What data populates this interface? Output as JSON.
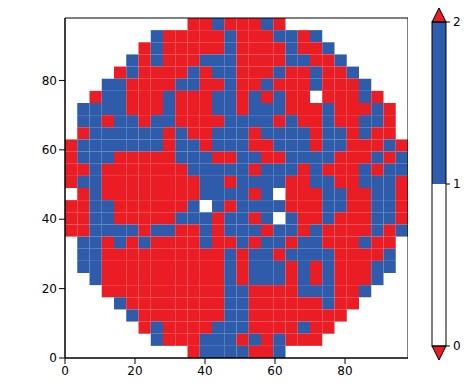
{
  "chart_data": {
    "type": "heatmap",
    "xlim": [
      0,
      98
    ],
    "ylim": [
      0,
      98
    ],
    "xticks": [
      0,
      20,
      40,
      60,
      80
    ],
    "yticks": [
      0,
      20,
      40,
      60,
      80
    ],
    "cells": [
      [
        null,
        null,
        null,
        null,
        null,
        null,
        null,
        null,
        null,
        null,
        2,
        2,
        1,
        2,
        2,
        2,
        1,
        2,
        null,
        null,
        null,
        null,
        null,
        null,
        null,
        null,
        null,
        null
      ],
      [
        null,
        null,
        null,
        null,
        null,
        null,
        null,
        1,
        2,
        2,
        2,
        2,
        2,
        1,
        2,
        2,
        2,
        1,
        1,
        2,
        1,
        null,
        null,
        null,
        null,
        null,
        null,
        null
      ],
      [
        null,
        null,
        null,
        null,
        null,
        null,
        2,
        1,
        2,
        2,
        2,
        2,
        2,
        1,
        2,
        2,
        2,
        2,
        1,
        2,
        2,
        1,
        null,
        null,
        null,
        null,
        null,
        null
      ],
      [
        null,
        null,
        null,
        null,
        null,
        1,
        2,
        1,
        2,
        2,
        2,
        1,
        1,
        1,
        2,
        2,
        2,
        2,
        1,
        1,
        2,
        2,
        1,
        null,
        null,
        null,
        null,
        null
      ],
      [
        null,
        null,
        null,
        null,
        2,
        1,
        2,
        2,
        2,
        2,
        1,
        2,
        1,
        1,
        2,
        2,
        2,
        1,
        2,
        2,
        1,
        2,
        2,
        1,
        null,
        null,
        null,
        null
      ],
      [
        null,
        null,
        null,
        1,
        1,
        2,
        2,
        2,
        2,
        1,
        1,
        2,
        2,
        1,
        2,
        2,
        1,
        2,
        2,
        2,
        1,
        2,
        2,
        2,
        1,
        null,
        null,
        null
      ],
      [
        null,
        null,
        2,
        1,
        1,
        2,
        2,
        2,
        1,
        2,
        2,
        2,
        1,
        1,
        2,
        1,
        2,
        1,
        2,
        2,
        0,
        2,
        2,
        2,
        1,
        2,
        null,
        null
      ],
      [
        null,
        1,
        1,
        1,
        1,
        2,
        2,
        2,
        1,
        2,
        2,
        2,
        1,
        1,
        2,
        1,
        1,
        1,
        2,
        2,
        2,
        1,
        2,
        2,
        2,
        1,
        2,
        null
      ],
      [
        null,
        1,
        1,
        2,
        1,
        1,
        2,
        1,
        1,
        2,
        2,
        2,
        2,
        1,
        1,
        1,
        1,
        2,
        1,
        2,
        2,
        1,
        2,
        2,
        1,
        1,
        2,
        null
      ],
      [
        null,
        2,
        1,
        1,
        1,
        1,
        1,
        1,
        2,
        1,
        2,
        2,
        1,
        1,
        1,
        2,
        1,
        1,
        1,
        1,
        2,
        1,
        1,
        2,
        1,
        2,
        2,
        null
      ],
      [
        2,
        1,
        1,
        1,
        1,
        1,
        1,
        1,
        2,
        1,
        1,
        2,
        1,
        1,
        1,
        2,
        2,
        1,
        1,
        1,
        2,
        1,
        1,
        2,
        2,
        2,
        1,
        2
      ],
      [
        2,
        1,
        1,
        1,
        2,
        2,
        2,
        2,
        2,
        1,
        1,
        1,
        2,
        2,
        1,
        1,
        2,
        2,
        1,
        1,
        1,
        1,
        2,
        2,
        2,
        1,
        2,
        1
      ],
      [
        2,
        2,
        1,
        2,
        2,
        2,
        2,
        2,
        2,
        2,
        1,
        1,
        1,
        1,
        1,
        2,
        1,
        1,
        1,
        2,
        1,
        2,
        2,
        2,
        1,
        2,
        1,
        1
      ],
      [
        2,
        1,
        1,
        2,
        2,
        2,
        2,
        2,
        2,
        2,
        2,
        1,
        1,
        2,
        1,
        1,
        1,
        1,
        2,
        2,
        1,
        1,
        2,
        2,
        1,
        1,
        1,
        2
      ],
      [
        0,
        2,
        1,
        2,
        2,
        2,
        2,
        2,
        2,
        2,
        2,
        1,
        1,
        1,
        1,
        2,
        1,
        0,
        2,
        2,
        2,
        1,
        1,
        2,
        2,
        1,
        1,
        2
      ],
      [
        2,
        2,
        1,
        1,
        2,
        2,
        2,
        2,
        2,
        2,
        1,
        0,
        1,
        2,
        1,
        1,
        1,
        1,
        2,
        2,
        2,
        1,
        1,
        2,
        2,
        1,
        1,
        2
      ],
      [
        2,
        2,
        1,
        1,
        2,
        2,
        2,
        2,
        2,
        1,
        1,
        1,
        2,
        1,
        1,
        2,
        1,
        0,
        1,
        2,
        2,
        1,
        2,
        2,
        2,
        1,
        1,
        2
      ],
      [
        2,
        2,
        1,
        1,
        1,
        1,
        2,
        1,
        1,
        2,
        2,
        1,
        2,
        1,
        1,
        1,
        2,
        1,
        1,
        2,
        1,
        2,
        2,
        2,
        2,
        1,
        2,
        1
      ],
      [
        null,
        1,
        1,
        2,
        1,
        2,
        1,
        2,
        2,
        2,
        2,
        1,
        2,
        2,
        1,
        2,
        1,
        1,
        2,
        1,
        1,
        2,
        2,
        2,
        1,
        2,
        2,
        null
      ],
      [
        null,
        1,
        1,
        2,
        2,
        2,
        2,
        2,
        2,
        2,
        2,
        2,
        2,
        1,
        2,
        1,
        1,
        2,
        1,
        1,
        1,
        1,
        2,
        2,
        2,
        2,
        1,
        null
      ],
      [
        null,
        1,
        1,
        2,
        2,
        2,
        2,
        2,
        2,
        2,
        2,
        2,
        2,
        1,
        2,
        1,
        1,
        1,
        2,
        1,
        2,
        1,
        2,
        2,
        2,
        1,
        1,
        null
      ],
      [
        null,
        null,
        1,
        2,
        2,
        2,
        2,
        2,
        2,
        2,
        2,
        2,
        2,
        1,
        2,
        1,
        1,
        1,
        2,
        1,
        2,
        1,
        2,
        2,
        2,
        1,
        null,
        null
      ],
      [
        null,
        null,
        null,
        2,
        2,
        2,
        2,
        2,
        2,
        2,
        2,
        2,
        2,
        1,
        1,
        2,
        2,
        2,
        2,
        1,
        1,
        1,
        2,
        2,
        1,
        null,
        null,
        null
      ],
      [
        null,
        null,
        null,
        null,
        1,
        2,
        2,
        2,
        2,
        2,
        2,
        2,
        2,
        1,
        1,
        2,
        2,
        2,
        2,
        2,
        2,
        1,
        2,
        2,
        null,
        null,
        null,
        null
      ],
      [
        null,
        null,
        null,
        null,
        null,
        1,
        2,
        2,
        2,
        2,
        2,
        2,
        2,
        1,
        1,
        2,
        2,
        2,
        2,
        2,
        2,
        2,
        2,
        null,
        null,
        null,
        null,
        null
      ],
      [
        null,
        null,
        null,
        null,
        null,
        null,
        2,
        1,
        2,
        2,
        2,
        2,
        1,
        1,
        1,
        2,
        2,
        2,
        2,
        1,
        2,
        2,
        null,
        null,
        null,
        null,
        null,
        null
      ],
      [
        null,
        null,
        null,
        null,
        null,
        null,
        null,
        1,
        2,
        2,
        2,
        1,
        1,
        1,
        2,
        1,
        2,
        1,
        2,
        2,
        2,
        null,
        null,
        null,
        null,
        null,
        null,
        null
      ],
      [
        null,
        null,
        null,
        null,
        null,
        null,
        null,
        null,
        null,
        null,
        2,
        1,
        1,
        1,
        1,
        2,
        2,
        1,
        null,
        null,
        null,
        null,
        null,
        null,
        null,
        null,
        null,
        null
      ]
    ],
    "colorbar": {
      "range": [
        0,
        2
      ],
      "ticks": [
        0,
        1,
        2
      ],
      "colors": [
        "#ffffff",
        "#2f5caa",
        "#ea1c24"
      ]
    }
  }
}
